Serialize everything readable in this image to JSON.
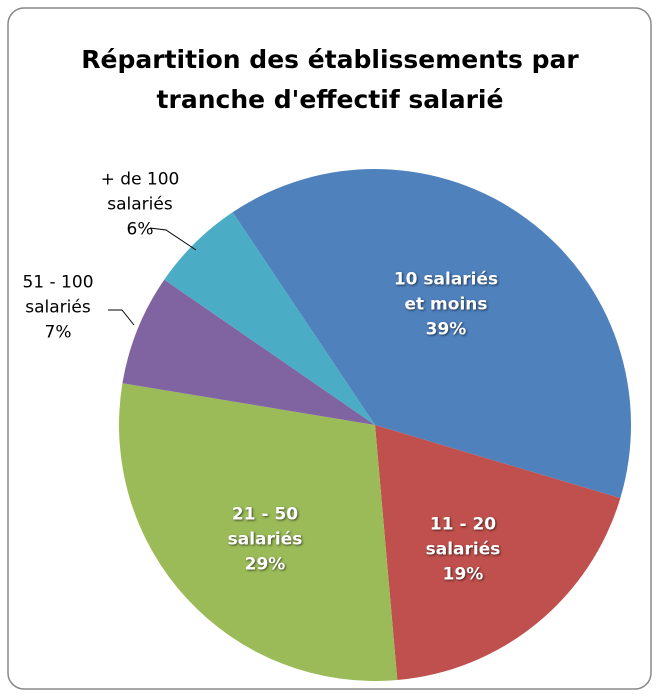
{
  "chart_data": {
    "type": "pie",
    "title": "Répartition des établissements par tranche d'effectif salarié",
    "categories": [
      "10 salariés et moins",
      "11 - 20 salariés",
      "21 - 50 salariés",
      "51 - 100 salariés",
      "+ de 100 salariés"
    ],
    "values": [
      39,
      19,
      29,
      7,
      6
    ],
    "value_labels": [
      "39%",
      "19%",
      "29%",
      "7%",
      "6%"
    ],
    "colors": [
      "#4f81bd",
      "#c0504d",
      "#9bbb59",
      "#8064a2",
      "#4bacc6"
    ]
  }
}
